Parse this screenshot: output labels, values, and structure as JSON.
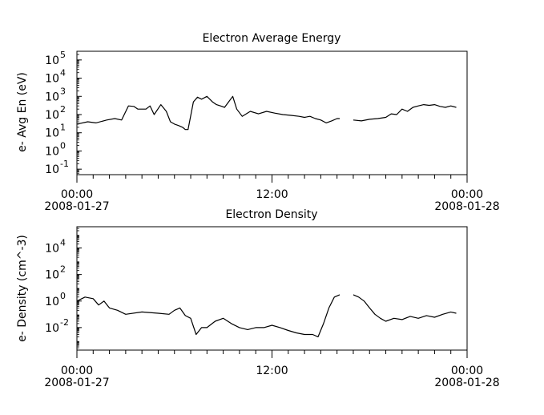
{
  "chart_data": [
    {
      "type": "line",
      "title": "Electron Average Energy",
      "ylabel": "e- Avg En (eV)",
      "yscale": "log",
      "ylim": [
        0.05,
        300000
      ],
      "y_tick_labels": [
        "10",
        "10",
        "10",
        "10",
        "10",
        "10",
        "10"
      ],
      "y_tick_exponents": [
        "-1",
        "0",
        "1",
        "2",
        "3",
        "4",
        "5"
      ],
      "y_tick_values": [
        0.1,
        1,
        10,
        100,
        1000,
        10000,
        100000
      ],
      "xlim": [
        "2008-01-27 00:00",
        "2008-01-28 00:00"
      ],
      "x_tick_labels": [
        {
          "time": "00:00",
          "date": "2008-01-27"
        },
        {
          "time": "12:00",
          "date": ""
        },
        {
          "time": "00:00",
          "date": "2008-01-28"
        }
      ],
      "gaps": [
        [
          "2008-01-27 16:10",
          "2008-01-27 17:00"
        ]
      ],
      "series": [
        {
          "x": [
            "2008-01-27 00:00",
            "2008-01-27 00:40",
            "2008-01-27 01:10",
            "2008-01-27 01:50",
            "2008-01-27 02:20",
            "2008-01-27 02:45",
            "2008-01-27 03:10",
            "2008-01-27 03:30",
            "2008-01-27 03:45",
            "2008-01-27 04:15",
            "2008-01-27 04:30",
            "2008-01-27 04:45",
            "2008-01-27 05:10",
            "2008-01-27 05:30",
            "2008-01-27 05:45",
            "2008-01-27 06:00",
            "2008-01-27 06:15",
            "2008-01-27 06:30",
            "2008-01-27 06:40",
            "2008-01-27 06:50",
            "2008-01-27 07:10",
            "2008-01-27 07:25",
            "2008-01-27 07:40",
            "2008-01-27 08:00",
            "2008-01-27 08:20",
            "2008-01-27 08:35",
            "2008-01-27 08:50",
            "2008-01-27 09:05",
            "2008-01-27 09:20",
            "2008-01-27 09:35",
            "2008-01-27 09:50",
            "2008-01-27 10:10",
            "2008-01-27 10:40",
            "2008-01-27 11:10",
            "2008-01-27 11:40",
            "2008-01-27 12:10",
            "2008-01-27 12:40",
            "2008-01-27 13:10",
            "2008-01-27 13:40",
            "2008-01-27 14:00",
            "2008-01-27 14:20",
            "2008-01-27 14:40",
            "2008-01-27 15:00",
            "2008-01-27 15:20",
            "2008-01-27 15:40",
            "2008-01-27 16:00",
            "2008-01-27 16:10",
            "2008-01-27 17:00",
            "2008-01-27 17:30",
            "2008-01-27 18:00",
            "2008-01-27 18:30",
            "2008-01-27 19:00",
            "2008-01-27 19:20",
            "2008-01-27 19:40",
            "2008-01-27 20:00",
            "2008-01-27 20:20",
            "2008-01-27 20:40",
            "2008-01-27 21:00",
            "2008-01-27 21:20",
            "2008-01-27 21:40",
            "2008-01-27 22:00",
            "2008-01-27 22:20",
            "2008-01-27 22:40",
            "2008-01-27 23:00",
            "2008-01-27 23:20"
          ],
          "values": [
            30,
            40,
            35,
            50,
            60,
            50,
            300,
            280,
            200,
            200,
            300,
            100,
            350,
            150,
            40,
            30,
            25,
            20,
            15,
            15,
            500,
            900,
            700,
            1000,
            500,
            350,
            300,
            250,
            500,
            1000,
            200,
            80,
            150,
            110,
            150,
            120,
            100,
            90,
            80,
            70,
            80,
            60,
            50,
            35,
            45,
            60,
            60,
            50,
            45,
            55,
            60,
            70,
            110,
            100,
            200,
            150,
            250,
            300,
            350,
            320,
            350,
            280,
            250,
            300,
            250
          ]
        }
      ]
    },
    {
      "type": "line",
      "title": "Electron Density",
      "ylabel": "e- Density (cm^-3)",
      "yscale": "log",
      "ylim": [
        0.0002,
        400000
      ],
      "y_tick_labels": [
        "10",
        "10",
        "10",
        "10"
      ],
      "y_tick_exponents": [
        "-2",
        "0",
        "2",
        "4"
      ],
      "y_tick_values": [
        0.01,
        1,
        100,
        10000
      ],
      "xlim": [
        "2008-01-27 00:00",
        "2008-01-28 00:00"
      ],
      "x_tick_labels": [
        {
          "time": "00:00",
          "date": "2008-01-27"
        },
        {
          "time": "12:00",
          "date": ""
        },
        {
          "time": "00:00",
          "date": "2008-01-28"
        }
      ],
      "gaps": [
        [
          "2008-01-27 16:10",
          "2008-01-27 17:00"
        ]
      ],
      "series": [
        {
          "x": [
            "2008-01-27 00:00",
            "2008-01-27 00:30",
            "2008-01-27 01:00",
            "2008-01-27 01:20",
            "2008-01-27 01:40",
            "2008-01-27 02:00",
            "2008-01-27 02:30",
            "2008-01-27 03:00",
            "2008-01-27 04:00",
            "2008-01-27 05:00",
            "2008-01-27 05:40",
            "2008-01-27 06:00",
            "2008-01-27 06:20",
            "2008-01-27 06:40",
            "2008-01-27 07:00",
            "2008-01-27 07:20",
            "2008-01-27 07:40",
            "2008-01-27 08:00",
            "2008-01-27 08:30",
            "2008-01-27 09:00",
            "2008-01-27 09:30",
            "2008-01-27 10:00",
            "2008-01-27 10:30",
            "2008-01-27 11:00",
            "2008-01-27 11:30",
            "2008-01-27 12:00",
            "2008-01-27 12:30",
            "2008-01-27 13:00",
            "2008-01-27 13:30",
            "2008-01-27 14:00",
            "2008-01-27 14:30",
            "2008-01-27 14:50",
            "2008-01-27 15:10",
            "2008-01-27 15:30",
            "2008-01-27 15:50",
            "2008-01-27 16:10",
            "2008-01-27 17:00",
            "2008-01-27 17:20",
            "2008-01-27 17:40",
            "2008-01-27 18:00",
            "2008-01-27 18:20",
            "2008-01-27 18:40",
            "2008-01-27 19:00",
            "2008-01-27 19:30",
            "2008-01-27 20:00",
            "2008-01-27 20:30",
            "2008-01-27 21:00",
            "2008-01-27 21:30",
            "2008-01-27 22:00",
            "2008-01-27 22:30",
            "2008-01-27 23:00",
            "2008-01-27 23:20"
          ],
          "values": [
            1,
            2,
            1.5,
            0.5,
            1,
            0.3,
            0.2,
            0.1,
            0.15,
            0.12,
            0.1,
            0.2,
            0.3,
            0.08,
            0.05,
            0.003,
            0.01,
            0.01,
            0.03,
            0.05,
            0.02,
            0.01,
            0.007,
            0.01,
            0.01,
            0.015,
            0.01,
            0.006,
            0.004,
            0.003,
            0.003,
            0.002,
            0.02,
            0.3,
            2,
            3,
            3,
            2,
            1,
            0.3,
            0.1,
            0.05,
            0.03,
            0.05,
            0.04,
            0.07,
            0.05,
            0.08,
            0.06,
            0.1,
            0.15,
            0.12
          ]
        }
      ]
    }
  ]
}
